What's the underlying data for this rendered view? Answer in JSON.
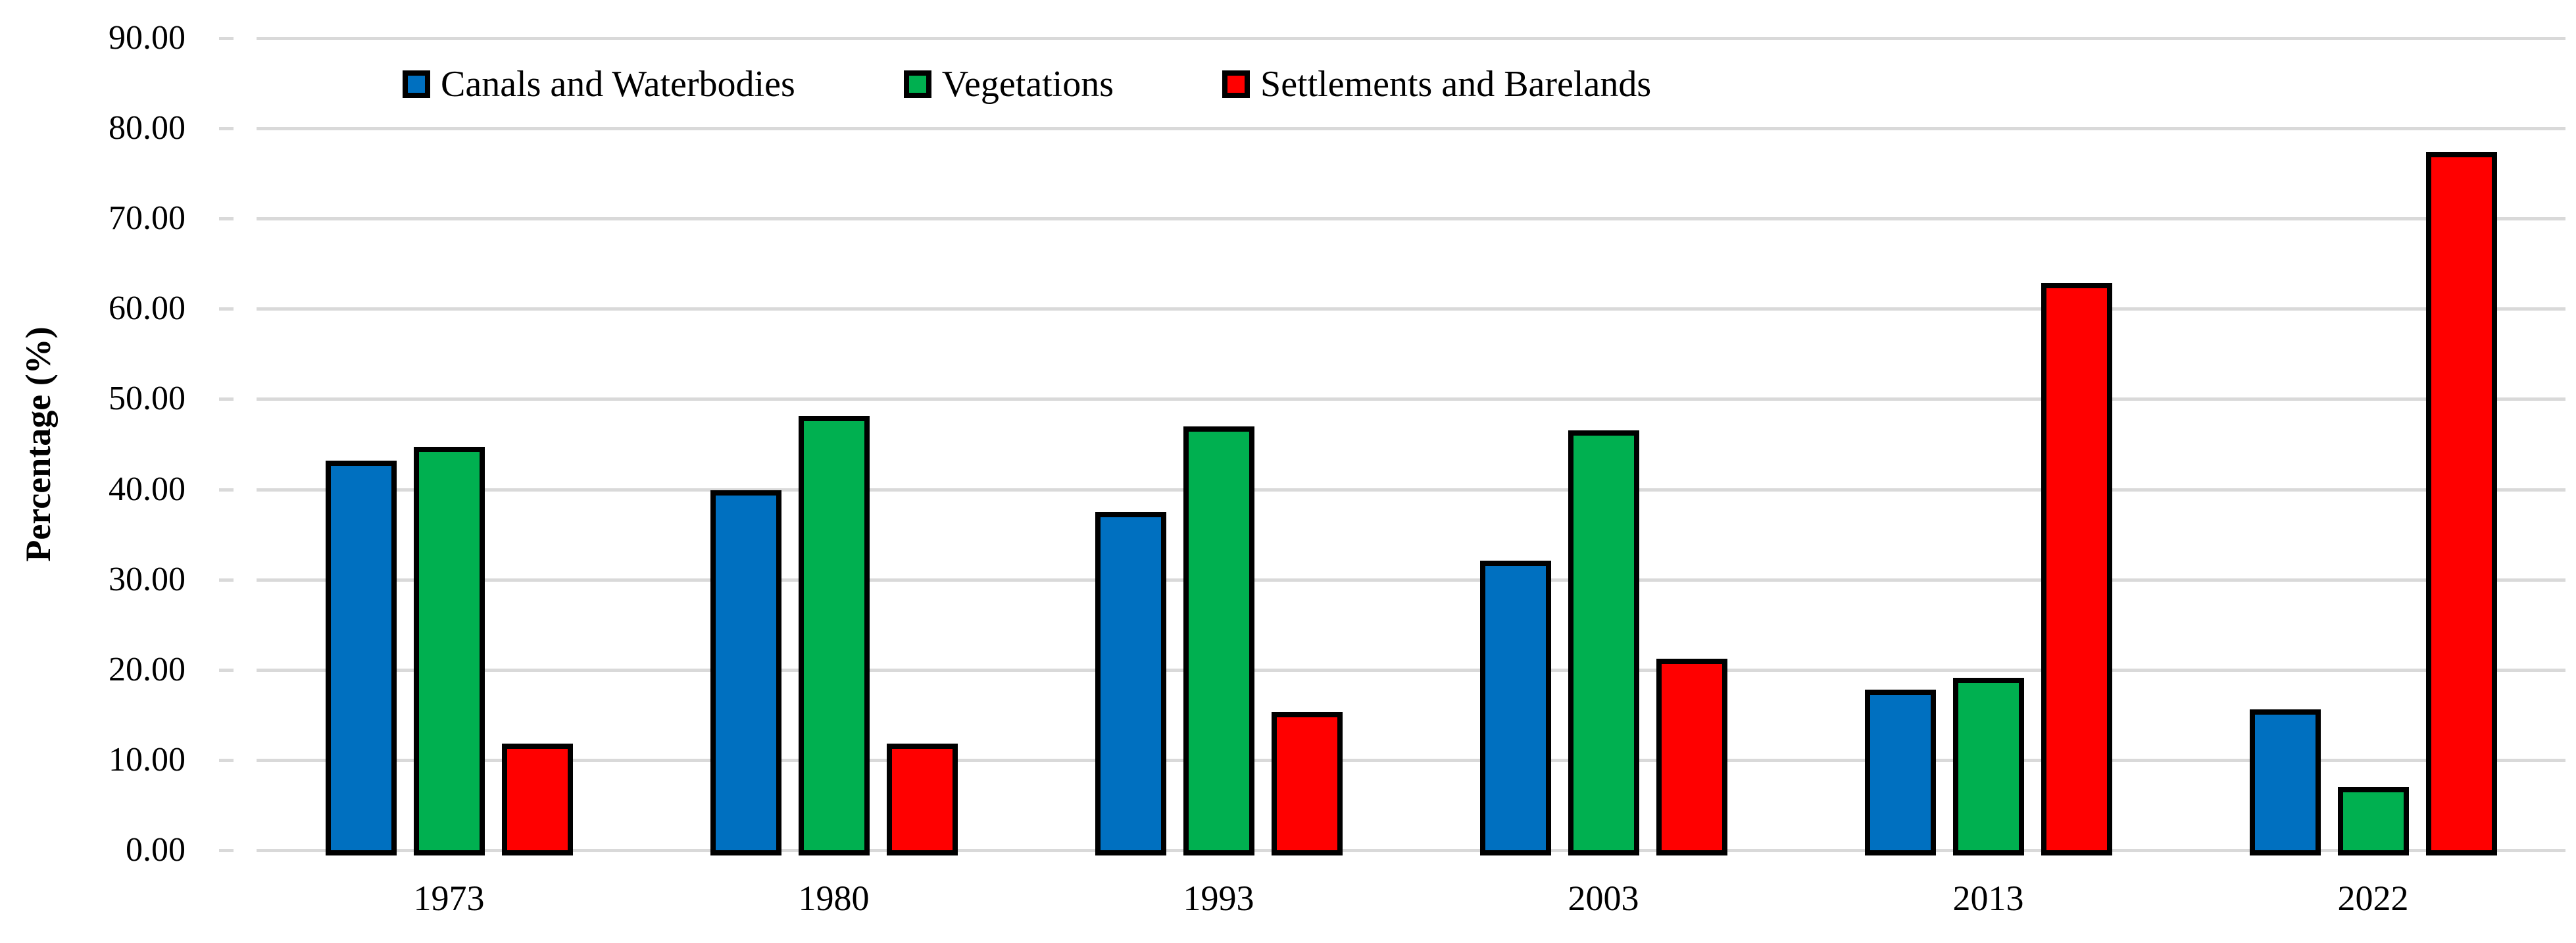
{
  "chart_data": {
    "type": "bar",
    "title": "",
    "categories": [
      "1973",
      "1980",
      "1993",
      "2003",
      "2013",
      "2022"
    ],
    "series": [
      {
        "name": "Canals and Waterbodies",
        "color": "#0070C0",
        "values": [
          43.2,
          39.9,
          37.5,
          32.1,
          17.8,
          15.6
        ]
      },
      {
        "name": "Vegetations",
        "color": "#00B050",
        "values": [
          44.7,
          48.1,
          47.0,
          46.5,
          19.1,
          7.0
        ]
      },
      {
        "name": "Settlements and Barelands",
        "color": "#FF0000",
        "values": [
          11.8,
          11.8,
          15.3,
          21.2,
          62.9,
          77.4
        ]
      }
    ],
    "xlabel": "",
    "ylabel": "Percentage (%)",
    "ylim": [
      0,
      90
    ],
    "ytick_step": 10,
    "ytick_labels": [
      "0.00",
      "10.00",
      "20.00",
      "30.00",
      "40.00",
      "50.00",
      "60.00",
      "70.00",
      "80.00",
      "90.00"
    ],
    "grid": true,
    "legend_position": "top",
    "gridline_color": "#D9D9D9",
    "bar_border_color": "#000000",
    "background_color": "#FFFFFF"
  }
}
